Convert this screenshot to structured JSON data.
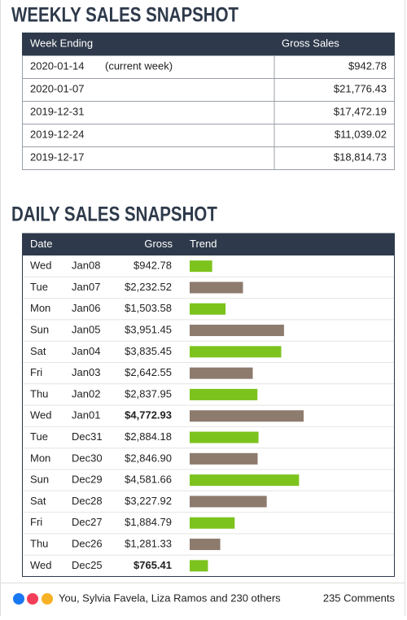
{
  "weekly": {
    "title": "WEEKLY SALES SNAPSHOT",
    "columns": [
      "Week Ending",
      "Gross Sales"
    ],
    "rows": [
      {
        "week_ending": "2020-01-14",
        "note": "(current week)",
        "gross_sales": "$942.78"
      },
      {
        "week_ending": "2020-01-07",
        "gross_sales": "$21,776.43"
      },
      {
        "week_ending": "2019-12-31",
        "gross_sales": "$17,472.19"
      },
      {
        "week_ending": "2019-12-24",
        "gross_sales": "$11,039.02"
      },
      {
        "week_ending": "2019-12-17",
        "gross_sales": "$18,814.73"
      }
    ]
  },
  "daily": {
    "title": "DAILY SALES SNAPSHOT",
    "columns": [
      "Date",
      "Gross",
      "Trend"
    ],
    "rows": [
      {
        "day": "Wed",
        "date": "Jan08",
        "gross": 942.78,
        "gross_label": "$942.78",
        "color": "#7dc31e"
      },
      {
        "day": "Tue",
        "date": "Jan07",
        "gross": 2232.52,
        "gross_label": "$2,232.52",
        "color": "#8d7b6e"
      },
      {
        "day": "Mon",
        "date": "Jan06",
        "gross": 1503.58,
        "gross_label": "$1,503.58",
        "color": "#7dc31e"
      },
      {
        "day": "Sun",
        "date": "Jan05",
        "gross": 3951.45,
        "gross_label": "$3,951.45",
        "color": "#8d7b6e"
      },
      {
        "day": "Sat",
        "date": "Jan04",
        "gross": 3835.45,
        "gross_label": "$3,835.45",
        "color": "#7dc31e"
      },
      {
        "day": "Fri",
        "date": "Jan03",
        "gross": 2642.55,
        "gross_label": "$2,642.55",
        "color": "#8d7b6e"
      },
      {
        "day": "Thu",
        "date": "Jan02",
        "gross": 2837.95,
        "gross_label": "$2,837.95",
        "color": "#7dc31e"
      },
      {
        "day": "Wed",
        "date": "Jan01",
        "gross": 4772.93,
        "gross_label": "$4,772.93",
        "color": "#8d7b6e",
        "bold": true
      },
      {
        "day": "Tue",
        "date": "Dec31",
        "gross": 2884.18,
        "gross_label": "$2,884.18",
        "color": "#7dc31e"
      },
      {
        "day": "Mon",
        "date": "Dec30",
        "gross": 2846.9,
        "gross_label": "$2,846.90",
        "color": "#8d7b6e"
      },
      {
        "day": "Sun",
        "date": "Dec29",
        "gross": 4581.66,
        "gross_label": "$4,581.66",
        "color": "#7dc31e"
      },
      {
        "day": "Sat",
        "date": "Dec28",
        "gross": 3227.92,
        "gross_label": "$3,227.92",
        "color": "#8d7b6e"
      },
      {
        "day": "Fri",
        "date": "Dec27",
        "gross": 1884.79,
        "gross_label": "$1,884.79",
        "color": "#7dc31e"
      },
      {
        "day": "Thu",
        "date": "Dec26",
        "gross": 1281.33,
        "gross_label": "$1,281.33",
        "color": "#8d7b6e"
      },
      {
        "day": "Wed",
        "date": "Dec25",
        "gross": 765.41,
        "gross_label": "$765.41",
        "color": "#7dc31e",
        "bold": true
      }
    ]
  },
  "footer": {
    "reactions": "You, Sylvia Favela, Liza Ramos and 230 others",
    "comments": "235 Comments"
  }
}
